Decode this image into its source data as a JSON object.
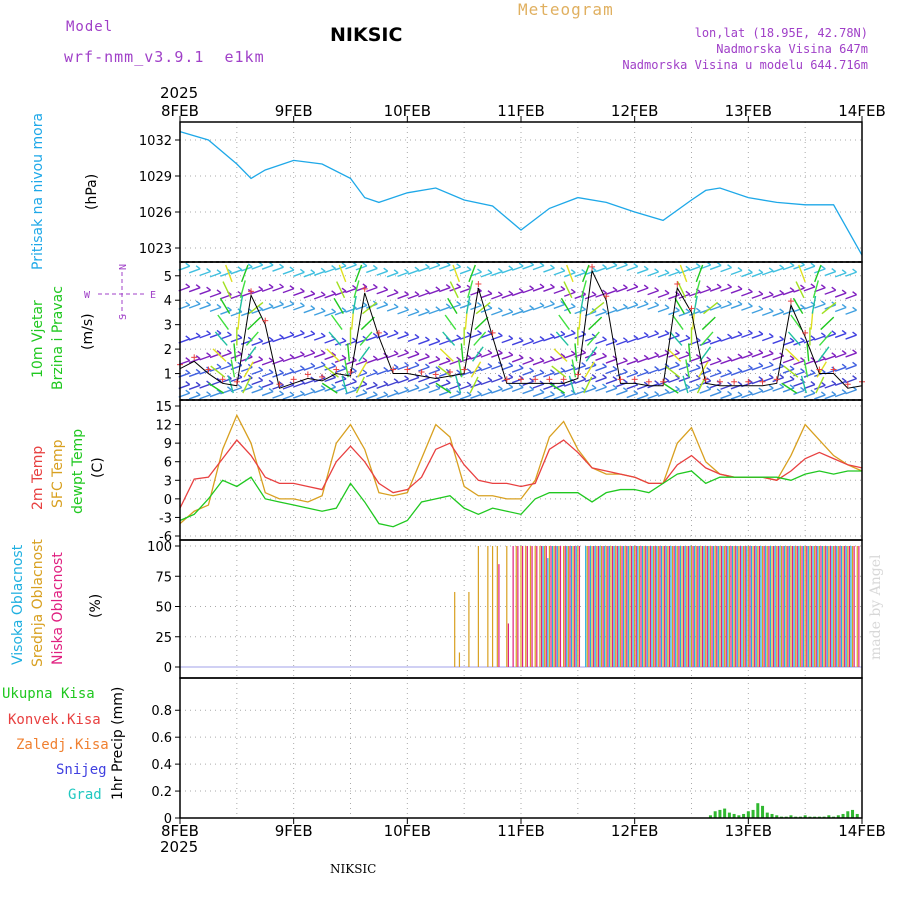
{
  "header": {
    "model_label": "Model",
    "model_name": "wrf-nmm_v3.9.1  e1km",
    "station": "NIKSIC",
    "meteogram_label": "Meteogram",
    "lonlat": "lon,lat (18.95E, 42.78N)",
    "elevation": "Nadmorska Visina 647m",
    "model_elevation": "Nadmorska Visina u modelu 644.716m",
    "year_top": "2025",
    "year_bottom": "2025",
    "footer_station": "NIKSIC",
    "watermark": "made by Angel"
  },
  "colors": {
    "pressure": "#1ea8e8",
    "temp2m": "#e84040",
    "sfc": "#d8a020",
    "dewpt": "#20c820",
    "cloud_high": "#20b0e0",
    "cloud_mid": "#d8a020",
    "cloud_low": "#e02080",
    "wind_label": "#20c820",
    "precip": "#30b830"
  },
  "panel_labels": {
    "pressure": {
      "name": "Pritisak na nivou mora",
      "unit": "(hPa)"
    },
    "wind": {
      "name1": "10m Vjetar",
      "name2": "Brzina i Pravac",
      "unit": "(m/s)",
      "compass_n": "N",
      "compass_s": "S",
      "compass_w": "W",
      "compass_e": "E"
    },
    "temp": {
      "t1": "2m Temp",
      "t2": "SFC Temp",
      "t3": "dewpt Temp",
      "unit": "(C)"
    },
    "cloud": {
      "c1": "Visoka Oblacnost",
      "c2": "Srednja Oblacnost",
      "c3": "Niska Oblacnost",
      "unit": "(%)"
    },
    "precip": {
      "l1": "Ukupna Kisa",
      "l2": "Konvek.Kisa",
      "l3": "Zaledj.Kisa",
      "l4": "Snijeg",
      "l5": "Grad",
      "axis": "1hr Precip (mm)"
    }
  },
  "chart_data": [
    {
      "type": "line",
      "panel": "pressure",
      "x_categories": [
        "8FEB",
        "9FEB",
        "10FEB",
        "11FEB",
        "12FEB",
        "13FEB",
        "14FEB"
      ],
      "x_hours": [
        0,
        6,
        12,
        15,
        18,
        24,
        30,
        36,
        39,
        42,
        48,
        54,
        60,
        66,
        69,
        72,
        78,
        84,
        90,
        96,
        102,
        108,
        111,
        114,
        120,
        126,
        132,
        138,
        144
      ],
      "series": [
        {
          "values": [
            1032.7,
            1032.0,
            1030.0,
            1028.8,
            1029.5,
            1030.3,
            1030.0,
            1028.8,
            1027.2,
            1026.8,
            1027.6,
            1028.0,
            1027.0,
            1026.5,
            1025.5,
            1024.5,
            1026.3,
            1027.2,
            1026.8,
            1026.0,
            1025.3,
            1027.0,
            1027.8,
            1028.0,
            1027.2,
            1026.8,
            1026.6,
            1026.6,
            1022.4
          ]
        }
      ],
      "ylim": [
        1022,
        1033
      ],
      "yticks": [
        1023,
        1026,
        1029,
        1032
      ]
    },
    {
      "type": "line",
      "panel": "wind",
      "x_hours": [
        0,
        3,
        6,
        9,
        12,
        15,
        18,
        21,
        24,
        27,
        30,
        33,
        36,
        39,
        42,
        45,
        48,
        51,
        54,
        57,
        60,
        63,
        66,
        69,
        72,
        75,
        78,
        81,
        84,
        87,
        90,
        93,
        96,
        99,
        102,
        105,
        108,
        111,
        114,
        117,
        120,
        123,
        126,
        129,
        132,
        135,
        138,
        141,
        144
      ],
      "series": [
        {
          "values": [
            1.2,
            1.5,
            1.0,
            0.6,
            0.5,
            4.2,
            3.0,
            0.4,
            0.6,
            0.8,
            0.7,
            1.0,
            0.9,
            4.3,
            2.5,
            1.0,
            1.0,
            0.9,
            0.8,
            0.9,
            1.0,
            4.5,
            2.5,
            0.6,
            0.6,
            0.6,
            0.6,
            0.6,
            0.8,
            5.2,
            4.0,
            0.6,
            0.6,
            0.5,
            0.5,
            4.5,
            3.5,
            0.6,
            0.5,
            0.5,
            0.5,
            0.5,
            0.6,
            3.8,
            2.5,
            1.0,
            1.0,
            0.4,
            0.5
          ]
        }
      ],
      "ylim": [
        0,
        5.4
      ],
      "yticks": [
        1,
        2,
        3,
        4,
        5
      ]
    },
    {
      "type": "line",
      "panel": "temperature",
      "x_hours": [
        0,
        3,
        6,
        9,
        12,
        15,
        18,
        21,
        24,
        27,
        30,
        33,
        36,
        39,
        42,
        45,
        48,
        51,
        54,
        57,
        60,
        63,
        66,
        69,
        72,
        75,
        78,
        81,
        84,
        87,
        90,
        93,
        96,
        99,
        102,
        105,
        108,
        111,
        114,
        117,
        120,
        123,
        126,
        129,
        132,
        135,
        138,
        141,
        144
      ],
      "series": [
        {
          "name": "2m Temp",
          "values": [
            -1.5,
            3.2,
            3.5,
            6.5,
            9.5,
            7.0,
            3.5,
            2.5,
            2.5,
            2.0,
            1.5,
            6.0,
            8.5,
            6.0,
            2.5,
            1.0,
            1.5,
            3.5,
            8.0,
            9.0,
            5.5,
            3.0,
            2.5,
            2.5,
            2.0,
            2.5,
            8.0,
            9.5,
            7.5,
            5.0,
            4.5,
            4.0,
            3.5,
            2.5,
            2.5,
            5.5,
            7.0,
            5.0,
            4.0,
            3.5,
            3.5,
            3.5,
            3.0,
            4.5,
            6.5,
            7.5,
            6.5,
            5.5,
            5.0
          ]
        },
        {
          "name": "SFC Temp",
          "values": [
            -4.0,
            -2.0,
            -1.0,
            8.0,
            13.5,
            9.0,
            1.0,
            0.0,
            0.0,
            -0.5,
            0.5,
            9.0,
            12.0,
            8.0,
            1.0,
            0.5,
            1.0,
            6.5,
            12.0,
            10.0,
            2.0,
            0.5,
            0.5,
            0.0,
            0.0,
            3.0,
            10.0,
            12.5,
            8.0,
            5.0,
            4.0,
            4.0,
            3.5,
            2.5,
            2.5,
            9.0,
            11.5,
            6.0,
            4.0,
            3.5,
            3.5,
            3.5,
            3.0,
            7.0,
            12.0,
            9.5,
            7.0,
            5.5,
            4.5
          ]
        },
        {
          "name": "dewpt Temp",
          "values": [
            -3.5,
            -2.5,
            0.0,
            3.0,
            2.0,
            3.5,
            0.0,
            -0.5,
            -1.0,
            -1.5,
            -2.0,
            -1.5,
            2.5,
            -0.5,
            -4.0,
            -4.5,
            -3.5,
            -0.5,
            0.0,
            0.5,
            -1.5,
            -2.5,
            -1.5,
            -2.0,
            -2.5,
            0.0,
            1.0,
            1.0,
            1.0,
            -0.5,
            1.0,
            1.5,
            1.5,
            1.0,
            2.5,
            4.0,
            4.5,
            2.5,
            3.5,
            3.5,
            3.5,
            3.5,
            3.5,
            3.0,
            4.0,
            4.5,
            4.0,
            4.5,
            4.5
          ]
        }
      ],
      "ylim": [
        -6,
        15
      ],
      "yticks": [
        -6,
        -3,
        0,
        3,
        6,
        9,
        12,
        15
      ]
    },
    {
      "type": "bar",
      "panel": "cloud",
      "x_hours": [
        58,
        59,
        61,
        62,
        63,
        65,
        66,
        67,
        69,
        70,
        71,
        72,
        73,
        74,
        75,
        76,
        77,
        78,
        79,
        80,
        81,
        82,
        83,
        84,
        86,
        87,
        88,
        89,
        90,
        91,
        92,
        93,
        94,
        95,
        96,
        97,
        98,
        99,
        100,
        101,
        102,
        103,
        104,
        105,
        106,
        107,
        108,
        109,
        110,
        111,
        112,
        113,
        114,
        115,
        116,
        117,
        118,
        119,
        120,
        121,
        122,
        123,
        124,
        125,
        126,
        127,
        128,
        129,
        130,
        131,
        132,
        133,
        134,
        135,
        136,
        137,
        138,
        139,
        140,
        141,
        142,
        143
      ],
      "series": [
        {
          "name": "Visoka Oblacnost",
          "values": [
            0,
            0,
            0,
            0,
            0,
            0,
            0,
            0,
            0,
            0,
            0,
            0,
            0,
            0,
            0,
            0,
            100,
            90,
            100,
            100,
            0,
            100,
            100,
            100,
            100,
            100,
            100,
            100,
            100,
            100,
            100,
            100,
            100,
            100,
            100,
            100,
            100,
            100,
            100,
            100,
            100,
            100,
            100,
            100,
            100,
            100,
            100,
            100,
            100,
            100,
            100,
            100,
            100,
            100,
            100,
            100,
            100,
            100,
            100,
            100,
            100,
            100,
            100,
            100,
            100,
            100,
            100,
            100,
            100,
            100,
            100,
            100,
            100,
            100,
            100,
            100,
            100,
            100,
            100,
            100,
            100,
            0
          ]
        },
        {
          "name": "Srednja Oblacnost",
          "values": [
            62,
            12,
            62,
            0,
            100,
            100,
            100,
            100,
            100,
            0,
            100,
            100,
            100,
            100,
            100,
            100,
            100,
            100,
            100,
            100,
            100,
            100,
            100,
            100,
            100,
            100,
            100,
            100,
            100,
            100,
            100,
            100,
            100,
            100,
            100,
            100,
            100,
            100,
            100,
            100,
            100,
            100,
            100,
            100,
            100,
            100,
            100,
            100,
            100,
            100,
            100,
            100,
            100,
            100,
            100,
            100,
            100,
            100,
            100,
            100,
            100,
            100,
            100,
            100,
            100,
            100,
            100,
            100,
            100,
            100,
            100,
            100,
            100,
            100,
            100,
            100,
            100,
            100,
            100,
            100,
            100,
            100
          ]
        },
        {
          "name": "Niska Oblacnost",
          "values": [
            0,
            0,
            0,
            0,
            0,
            0,
            0,
            85,
            36,
            100,
            100,
            100,
            100,
            100,
            100,
            100,
            100,
            100,
            100,
            100,
            100,
            100,
            100,
            100,
            100,
            100,
            100,
            100,
            100,
            100,
            100,
            100,
            100,
            100,
            100,
            100,
            100,
            100,
            100,
            100,
            100,
            100,
            100,
            100,
            100,
            100,
            100,
            100,
            100,
            100,
            100,
            100,
            100,
            100,
            100,
            100,
            100,
            100,
            100,
            100,
            100,
            100,
            100,
            100,
            100,
            100,
            100,
            100,
            100,
            100,
            100,
            100,
            100,
            100,
            100,
            100,
            100,
            100,
            100,
            100,
            100,
            100
          ]
        }
      ],
      "ylim": [
        0,
        100
      ],
      "yticks": [
        0,
        25,
        50,
        75,
        100
      ]
    },
    {
      "type": "bar",
      "panel": "precip",
      "x_hours": [
        112,
        113,
        114,
        115,
        116,
        117,
        118,
        119,
        120,
        121,
        122,
        123,
        124,
        125,
        126,
        127,
        128,
        129,
        130,
        131,
        132,
        133,
        134,
        135,
        136,
        137,
        138,
        139,
        140,
        141,
        142,
        143
      ],
      "series": [
        {
          "name": "Ukupna Kisa",
          "values": [
            0.02,
            0.05,
            0.06,
            0.07,
            0.04,
            0.03,
            0.02,
            0.03,
            0.05,
            0.06,
            0.11,
            0.09,
            0.04,
            0.03,
            0.02,
            0.01,
            0.01,
            0.02,
            0.01,
            0.01,
            0.02,
            0.01,
            0.01,
            0.01,
            0.01,
            0.02,
            0.01,
            0.02,
            0.03,
            0.05,
            0.06,
            0.03
          ]
        }
      ],
      "ylim": [
        0,
        0.98
      ],
      "yticks": [
        0,
        0.2,
        0.4,
        0.6,
        0.8
      ]
    }
  ]
}
